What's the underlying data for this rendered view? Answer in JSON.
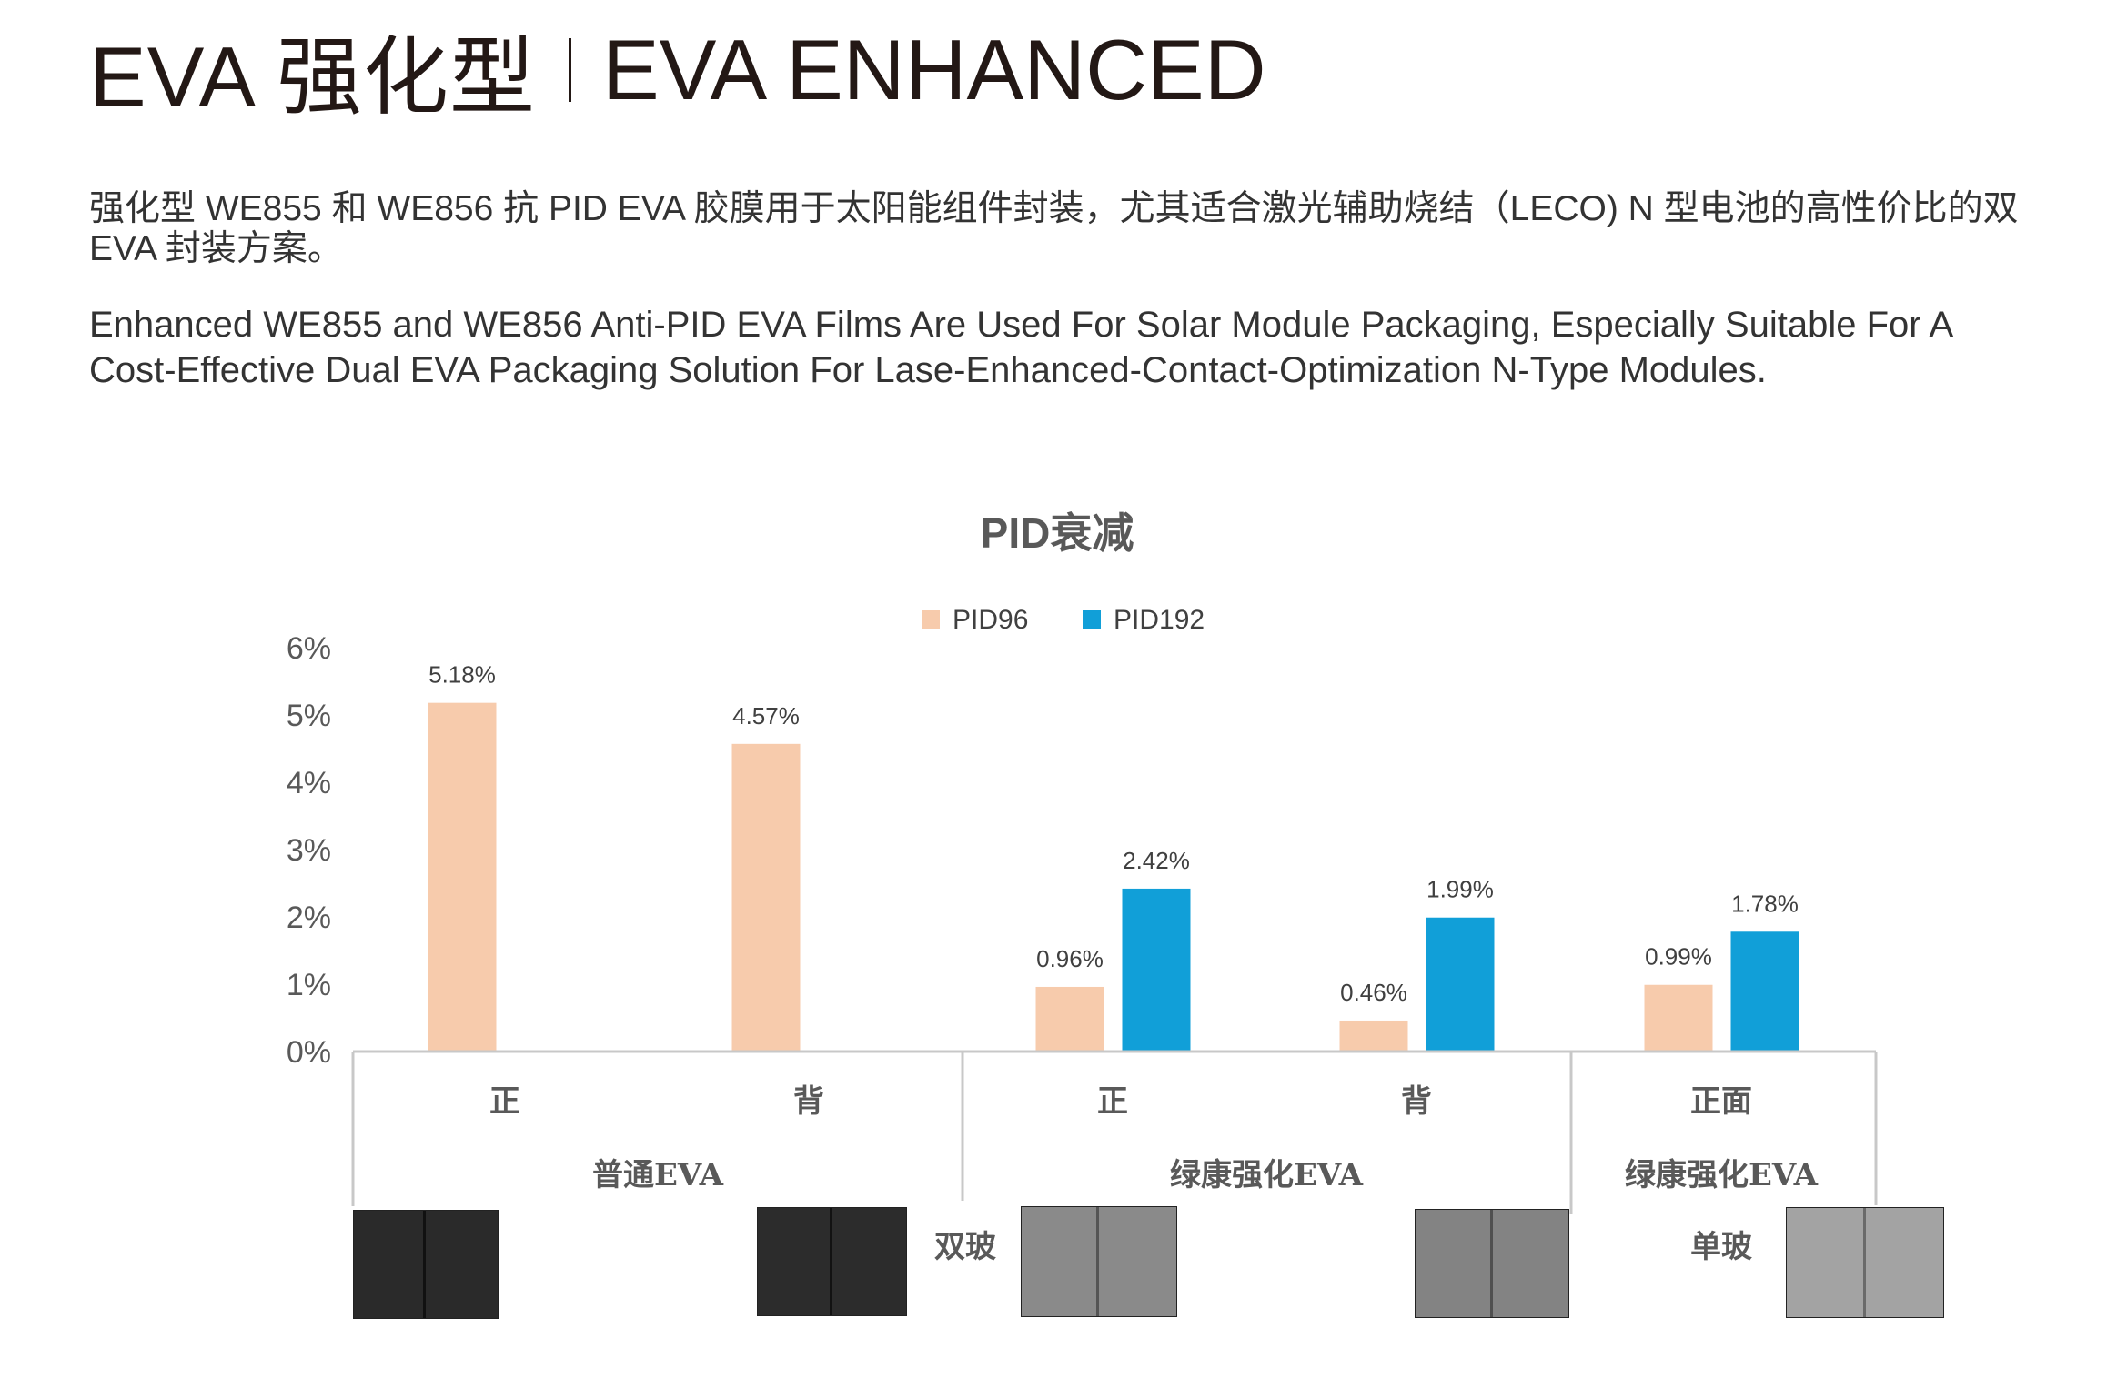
{
  "header": {
    "title_cn": "EVA 强化型",
    "title_en": "EVA ENHANCED"
  },
  "description": {
    "cn": "强化型 WE855 和 WE856 抗 PID EVA 胶膜用于太阳能组件封装，尤其适合激光辅助烧结（LECO) N 型电池的高性价比的双 EVA 封装方案。",
    "en": "Enhanced WE855 and WE856 Anti-PID EVA Films Are Used For Solar Module Packaging, Especially Suitable For A Cost-Effective Dual EVA Packaging Solution For Lase-Enhanced-Contact-Optimization N-Type Modules."
  },
  "chart_data": {
    "type": "bar",
    "title": "PID衰减",
    "legend": [
      "PID96",
      "PID192"
    ],
    "legend_position": "top-center",
    "colors": {
      "PID96": "#F7CBAC",
      "PID192": "#119FD8"
    },
    "ylim": [
      0,
      6
    ],
    "yticks": [
      "0%",
      "1%",
      "2%",
      "3%",
      "4%",
      "5%",
      "6%"
    ],
    "grid": false,
    "categories": [
      "正",
      "背",
      "正",
      "背",
      "正面"
    ],
    "groups": [
      {
        "label": "普通EVA",
        "categories": [
          "正",
          "背"
        ]
      },
      {
        "label": "绿康强化EVA",
        "categories": [
          "正",
          "背"
        ]
      },
      {
        "label": "绿康强化EVA",
        "categories": [
          "正面"
        ]
      }
    ],
    "series": [
      {
        "name": "PID96",
        "values": [
          5.18,
          4.57,
          0.96,
          0.46,
          0.99
        ],
        "labels": [
          "5.18%",
          "4.57%",
          "0.96%",
          "0.46%",
          "0.99%"
        ]
      },
      {
        "name": "PID192",
        "values": [
          null,
          null,
          2.42,
          1.99,
          1.78
        ],
        "labels": [
          "",
          "",
          "2.42%",
          "1.99%",
          "1.78%"
        ]
      }
    ],
    "glass_labels": [
      "双玻",
      "单玻"
    ]
  }
}
